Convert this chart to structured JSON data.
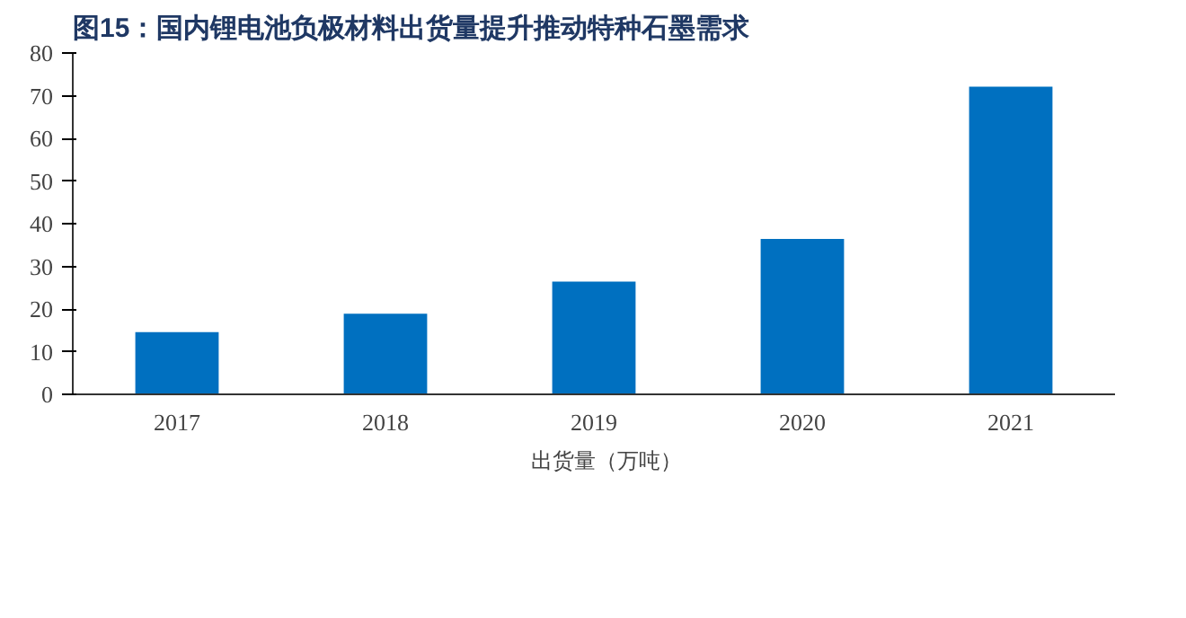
{
  "chart_data": {
    "type": "bar",
    "title": "图15：国内锂电池负极材料出货量提升推动特种石墨需求",
    "categories": [
      "2017",
      "2018",
      "2019",
      "2020",
      "2021"
    ],
    "series": [
      {
        "name": "出货量（万吨）",
        "color": "#0070c0",
        "values": [
          14.6,
          18.9,
          26.4,
          36.4,
          72.1
        ]
      }
    ],
    "ylim": [
      0,
      80
    ],
    "yticks": [
      0,
      10,
      20,
      30,
      40,
      50,
      60,
      70,
      80
    ],
    "grid": false,
    "legend": "bottom"
  }
}
